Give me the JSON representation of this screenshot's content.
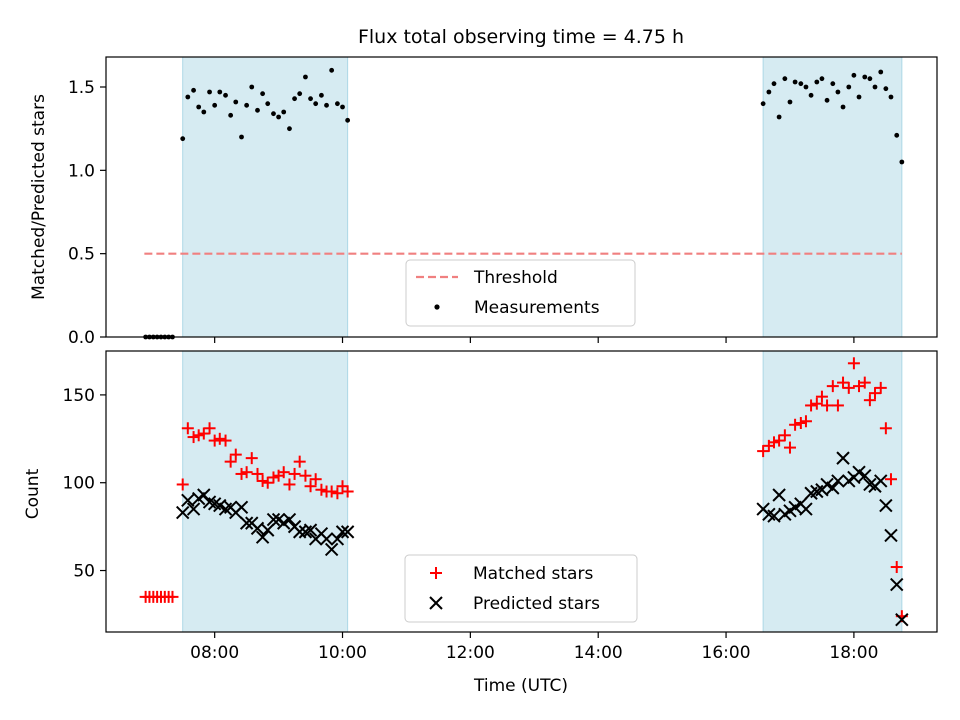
{
  "figure": {
    "title": "Flux total observing time = 4.75 h"
  },
  "colors": {
    "shade": "#add8e6",
    "threshold": "#f08080",
    "measurement": "#000000",
    "matched": "#ff0000",
    "predicted": "#000000"
  },
  "chart_data": [
    {
      "type": "scatter",
      "panel": "top",
      "title": "Flux total observing time = 4.75 h",
      "xlabel": "",
      "ylabel": "Matched/Predicted stars",
      "x_unit": "hours (UTC)",
      "xlim": [
        6.3,
        19.3
      ],
      "ylim": [
        0,
        1.68
      ],
      "y_ticks": [
        0.0,
        0.5,
        1.0,
        1.5
      ],
      "y_tick_labels": [
        "0.0",
        "0.5",
        "1.0",
        "1.5"
      ],
      "x_ticks": [
        8,
        10,
        12,
        14,
        16,
        18
      ],
      "shaded_intervals": [
        [
          7.5,
          10.08
        ],
        [
          16.58,
          18.75
        ]
      ],
      "threshold": {
        "value": 0.5,
        "x_range": [
          6.9,
          18.75
        ]
      },
      "legend": {
        "placement": "lower center",
        "entries": [
          {
            "label": "Threshold",
            "style": "dashed-line"
          },
          {
            "label": "Measurements",
            "style": "dot"
          }
        ]
      },
      "series": [
        {
          "name": "Measurements",
          "marker": "dot",
          "x": [
            6.92,
            6.98,
            7.04,
            7.1,
            7.16,
            7.22,
            7.28,
            7.34,
            7.5,
            7.58,
            7.67,
            7.75,
            7.83,
            7.92,
            8.0,
            8.08,
            8.17,
            8.25,
            8.33,
            8.42,
            8.5,
            8.58,
            8.67,
            8.75,
            8.83,
            8.92,
            9.0,
            9.08,
            9.17,
            9.25,
            9.33,
            9.42,
            9.5,
            9.58,
            9.67,
            9.75,
            9.83,
            9.92,
            10.0,
            10.08,
            16.58,
            16.67,
            16.75,
            16.83,
            16.92,
            17.0,
            17.08,
            17.17,
            17.25,
            17.33,
            17.42,
            17.5,
            17.58,
            17.67,
            17.75,
            17.83,
            17.92,
            18.0,
            18.08,
            18.17,
            18.25,
            18.33,
            18.42,
            18.5,
            18.58,
            18.67,
            18.75
          ],
          "y": [
            0.0,
            0.0,
            0.0,
            0.0,
            0.0,
            0.0,
            0.0,
            0.0,
            1.19,
            1.44,
            1.48,
            1.38,
            1.35,
            1.47,
            1.39,
            1.47,
            1.45,
            1.33,
            1.41,
            1.2,
            1.39,
            1.5,
            1.36,
            1.46,
            1.4,
            1.34,
            1.32,
            1.35,
            1.25,
            1.43,
            1.46,
            1.56,
            1.43,
            1.4,
            1.45,
            1.39,
            1.6,
            1.4,
            1.38,
            1.3,
            1.4,
            1.47,
            1.52,
            1.32,
            1.55,
            1.41,
            1.53,
            1.52,
            1.5,
            1.45,
            1.53,
            1.55,
            1.42,
            1.52,
            1.47,
            1.38,
            1.5,
            1.57,
            1.44,
            1.56,
            1.55,
            1.5,
            1.59,
            1.49,
            1.44,
            1.21,
            1.05
          ]
        }
      ]
    },
    {
      "type": "scatter",
      "panel": "bottom",
      "xlabel": "Time (UTC)",
      "ylabel": "Count",
      "x_unit": "hours (UTC)",
      "xlim": [
        6.3,
        19.3
      ],
      "ylim": [
        15,
        175
      ],
      "x_ticks": [
        8,
        10,
        12,
        14,
        16,
        18
      ],
      "x_tick_labels": [
        "08:00",
        "10:00",
        "12:00",
        "14:00",
        "16:00",
        "18:00"
      ],
      "y_ticks": [
        50,
        100,
        150
      ],
      "y_tick_labels": [
        "50",
        "100",
        "150"
      ],
      "shaded_intervals": [
        [
          7.5,
          10.08
        ],
        [
          16.58,
          18.75
        ]
      ],
      "legend": {
        "placement": "lower center",
        "entries": [
          {
            "label": "Matched stars",
            "style": "plus"
          },
          {
            "label": "Predicted stars",
            "style": "cross"
          }
        ]
      },
      "series": [
        {
          "name": "Matched stars",
          "marker": "plus",
          "x": [
            6.92,
            6.98,
            7.04,
            7.1,
            7.16,
            7.22,
            7.28,
            7.34,
            7.5,
            7.58,
            7.67,
            7.75,
            7.83,
            7.92,
            8.0,
            8.08,
            8.17,
            8.25,
            8.33,
            8.42,
            8.5,
            8.58,
            8.67,
            8.75,
            8.83,
            8.92,
            9.0,
            9.08,
            9.17,
            9.25,
            9.33,
            9.42,
            9.5,
            9.58,
            9.67,
            9.75,
            9.83,
            9.92,
            10.0,
            10.08,
            16.58,
            16.67,
            16.75,
            16.83,
            16.92,
            17.0,
            17.08,
            17.17,
            17.25,
            17.33,
            17.42,
            17.5,
            17.58,
            17.67,
            17.75,
            17.83,
            17.92,
            18.0,
            18.08,
            18.17,
            18.25,
            18.33,
            18.42,
            18.5,
            18.58,
            18.67,
            18.75
          ],
          "y": [
            35,
            35,
            35,
            35,
            35,
            35,
            35,
            35,
            99,
            131,
            126,
            127,
            128,
            131,
            124,
            125,
            124,
            112,
            116,
            105,
            106,
            114,
            105,
            101,
            100,
            103,
            104,
            106,
            99,
            105,
            112,
            104,
            98,
            102,
            96,
            95,
            95,
            94,
            98,
            95,
            118,
            121,
            123,
            124,
            127,
            120,
            133,
            134,
            135,
            144,
            145,
            149,
            144,
            155,
            144,
            157,
            154,
            168,
            155,
            157,
            147,
            151,
            154,
            131,
            102,
            52,
            24
          ]
        },
        {
          "name": "Predicted stars",
          "marker": "cross",
          "x": [
            7.5,
            7.58,
            7.67,
            7.75,
            7.83,
            7.92,
            8.0,
            8.08,
            8.17,
            8.25,
            8.33,
            8.42,
            8.5,
            8.58,
            8.67,
            8.75,
            8.83,
            8.92,
            9.0,
            9.08,
            9.17,
            9.25,
            9.33,
            9.42,
            9.5,
            9.58,
            9.67,
            9.75,
            9.83,
            9.92,
            10.0,
            10.08,
            16.58,
            16.67,
            16.75,
            16.83,
            16.92,
            17.0,
            17.08,
            17.17,
            17.25,
            17.33,
            17.42,
            17.5,
            17.58,
            17.67,
            17.75,
            17.83,
            17.92,
            18.0,
            18.08,
            18.17,
            18.25,
            18.33,
            18.42,
            18.5,
            18.58,
            18.67,
            18.75
          ],
          "y": [
            83,
            90,
            85,
            91,
            93,
            89,
            88,
            87,
            85,
            86,
            83,
            86,
            77,
            77,
            74,
            69,
            73,
            79,
            79,
            77,
            79,
            75,
            72,
            72,
            73,
            68,
            71,
            68,
            62,
            68,
            72,
            72,
            85,
            82,
            81,
            93,
            82,
            84,
            86,
            88,
            85,
            94,
            95,
            96,
            99,
            97,
            101,
            114,
            101,
            103,
            106,
            104,
            99,
            98,
            101,
            87,
            70,
            42,
            22
          ]
        }
      ]
    }
  ]
}
